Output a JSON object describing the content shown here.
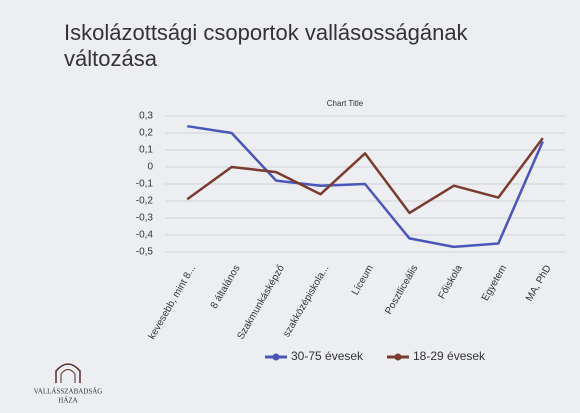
{
  "chart_data": {
    "type": "line",
    "title": "Iskolázottsági csoportok vallásosságának változása",
    "subtitle": "Chart Title",
    "categories": [
      "kevesebb, mint 8...",
      "8 általános",
      "Szakmunkásképző",
      "szakközépiskola...",
      "Líceum",
      "Posztliceális",
      "Főiskola",
      "Egyetem",
      "MA, PhD"
    ],
    "series": [
      {
        "name": "30-75 évesek",
        "color": "#4b56b8",
        "values": [
          0.24,
          0.2,
          -0.08,
          -0.11,
          -0.1,
          -0.42,
          -0.47,
          -0.45,
          0.15
        ]
      },
      {
        "name": "18-29 évesek",
        "color": "#7a3b30",
        "values": [
          -0.19,
          0.0,
          -0.03,
          -0.16,
          0.08,
          -0.27,
          -0.11,
          -0.18,
          0.17
        ]
      }
    ],
    "ylim": [
      -0.5,
      0.3
    ],
    "yticks": [
      {
        "value": 0.3,
        "label": "0,3"
      },
      {
        "value": 0.2,
        "label": "0,2"
      },
      {
        "value": 0.1,
        "label": "0,1"
      },
      0,
      {
        "value": -0.1,
        "label": "-0,1"
      },
      {
        "value": -0.2,
        "label": "-0,2"
      },
      {
        "value": -0.3,
        "label": "-0,3"
      },
      {
        "value": -0.4,
        "label": "-0,4"
      },
      {
        "value": -0.5,
        "label": "-0,5"
      }
    ],
    "grid": true,
    "legend": "bottom"
  },
  "logo": {
    "lines": [
      "VALLÁSSZABADSÁG",
      "HÁZA"
    ]
  }
}
